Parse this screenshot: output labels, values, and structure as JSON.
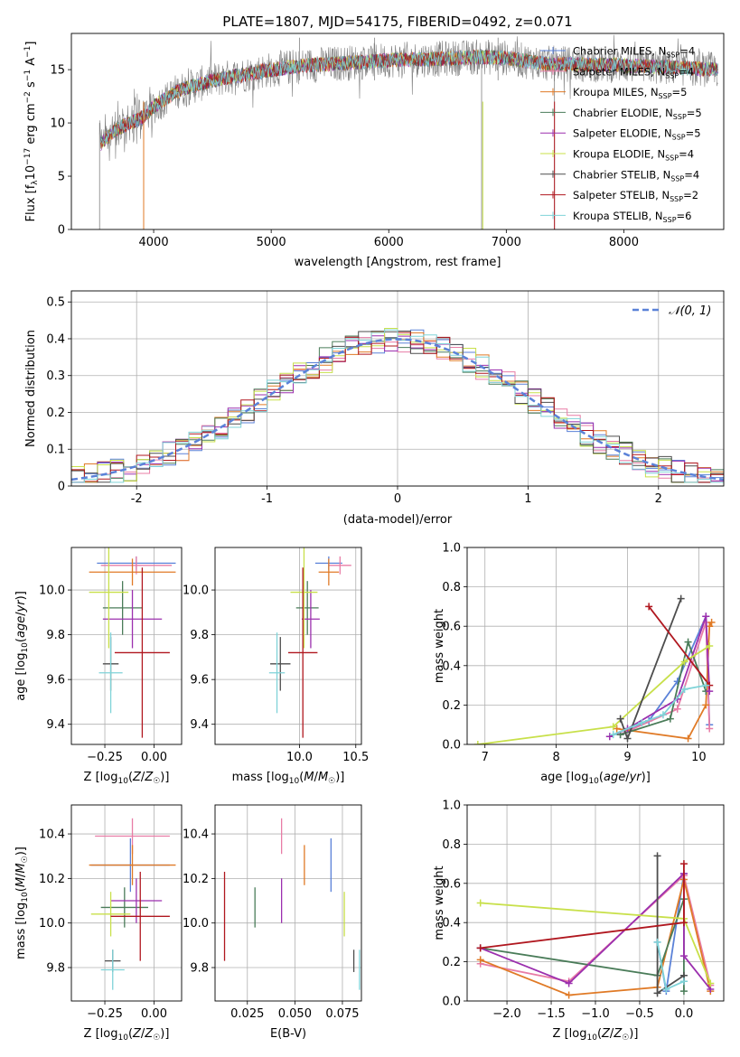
{
  "title": "PLATE=1807, MJD=54175, FIBERID=0492, z=0.071",
  "series_styles": [
    {
      "name": "Chabrier MILES",
      "nssp": "4",
      "color": "#5b82d8"
    },
    {
      "name": "Salpeter MILES",
      "nssp": "4",
      "color": "#e87ca6"
    },
    {
      "name": "Kroupa MILES",
      "nssp": "5",
      "color": "#e07a26"
    },
    {
      "name": "Chabrier ELODIE",
      "nssp": "5",
      "color": "#4a7c59"
    },
    {
      "name": "Salpeter ELODIE",
      "nssp": "5",
      "color": "#9b2fae"
    },
    {
      "name": "Kroupa ELODIE",
      "nssp": "4",
      "color": "#c8e04a"
    },
    {
      "name": "Chabrier STELIB",
      "nssp": "4",
      "color": "#4d4d4d"
    },
    {
      "name": "Salpeter STELIB",
      "nssp": "2",
      "color": "#b0171f"
    },
    {
      "name": "Kroupa STELIB",
      "nssp": "6",
      "color": "#7fd3d8"
    }
  ],
  "chart_data": [
    {
      "id": "spectrum",
      "type": "line",
      "xlabel": "wavelength [Angstrom, rest frame]",
      "ylabel": "Flux [f_λ 10^-17 erg cm^-2 s^-1 A^-1]",
      "xlim": [
        3300,
        8850
      ],
      "ylim": [
        0,
        18.4
      ],
      "xticks": [
        4000,
        5000,
        6000,
        7000,
        8000
      ],
      "yticks": [
        0,
        5,
        10,
        15
      ],
      "data_color": "#808080",
      "continuum": [
        [
          3540,
          8.0
        ],
        [
          3700,
          9.5
        ],
        [
          3900,
          10.5
        ],
        [
          4000,
          11.5
        ],
        [
          4200,
          13.0
        ],
        [
          4500,
          14.0
        ],
        [
          4800,
          14.6
        ],
        [
          5000,
          15.0
        ],
        [
          5300,
          15.4
        ],
        [
          5600,
          15.6
        ],
        [
          6000,
          15.9
        ],
        [
          6400,
          16.0
        ],
        [
          6800,
          16.2
        ],
        [
          7000,
          16.1
        ],
        [
          7300,
          15.6
        ],
        [
          7600,
          15.5
        ],
        [
          8000,
          15.4
        ],
        [
          8400,
          15.2
        ],
        [
          8800,
          15.0
        ]
      ],
      "legend_placement": "upper right",
      "grid": false
    },
    {
      "id": "residual_hist",
      "type": "histogram",
      "xlabel": "(data-model)/error",
      "ylabel": "Normed distribution",
      "xlim": [
        -2.5,
        2.5
      ],
      "ylim": [
        0,
        0.53
      ],
      "xticks": [
        -2,
        -1,
        0,
        1,
        2
      ],
      "yticks": [
        0.0,
        0.1,
        0.2,
        0.3,
        0.4,
        0.5
      ],
      "bin_width": 0.1,
      "reference_curve": {
        "name": "N(0,1)",
        "style": "dashed",
        "color": "#5b82d8"
      },
      "legend_placement": "upper right",
      "grid": true
    },
    {
      "id": "age_vs_Z",
      "type": "errorbar",
      "xlabel": "Z [log10(Z/Z☉)]",
      "ylabel": "age [log10(age/yr)]",
      "xlim": [
        -0.42,
        0.14
      ],
      "ylim": [
        9.31,
        10.19
      ],
      "xticks": [
        -0.25,
        0.0
      ],
      "xticklabels": [
        "−0.25",
        "0.00"
      ],
      "yticks": [
        9.4,
        9.6,
        9.8,
        10.0
      ],
      "yticklabels": [
        "9.4",
        "9.6",
        "9.8",
        "10.0"
      ],
      "points": [
        {
          "series": 0,
          "x": -0.09,
          "y": 10.12,
          "xe": 0.2,
          "ye": 0.03
        },
        {
          "series": 1,
          "x": -0.09,
          "y": 10.11,
          "xe": 0.18,
          "ye": 0.04
        },
        {
          "series": 2,
          "x": -0.11,
          "y": 10.08,
          "xe": 0.22,
          "ye": 0.06
        },
        {
          "series": 3,
          "x": -0.16,
          "y": 9.92,
          "xe": 0.1,
          "ye": 0.12
        },
        {
          "series": 4,
          "x": -0.11,
          "y": 9.87,
          "xe": 0.15,
          "ye": 0.13
        },
        {
          "series": 5,
          "x": -0.23,
          "y": 9.99,
          "xe": 0.1,
          "ye": 0.25
        },
        {
          "series": 6,
          "x": -0.22,
          "y": 9.67,
          "xe": 0.04,
          "ye": 0.12
        },
        {
          "series": 7,
          "x": -0.06,
          "y": 9.72,
          "xe": 0.14,
          "ye": 0.38
        },
        {
          "series": 8,
          "x": -0.22,
          "y": 9.63,
          "xe": 0.06,
          "ye": 0.18
        }
      ],
      "grid": true
    },
    {
      "id": "age_vs_mass",
      "type": "errorbar",
      "xlabel": "mass [log10(M/M☉)]",
      "ylabel": "",
      "xlim": [
        9.25,
        10.55
      ],
      "ylim": [
        9.31,
        10.19
      ],
      "xticks": [
        10.0,
        10.5
      ],
      "xticklabels": [
        "10.0",
        "10.5"
      ],
      "yticks": [
        9.4,
        9.6,
        9.8,
        10.0
      ],
      "yticklabels": [
        "9.4",
        "9.6",
        "9.8",
        "10.0"
      ],
      "points": [
        {
          "series": 0,
          "x": 10.26,
          "y": 10.12,
          "xe": 0.12,
          "ye": 0.03
        },
        {
          "series": 1,
          "x": 10.36,
          "y": 10.11,
          "xe": 0.1,
          "ye": 0.04
        },
        {
          "series": 2,
          "x": 10.26,
          "y": 10.08,
          "xe": 0.09,
          "ye": 0.06
        },
        {
          "series": 3,
          "x": 10.07,
          "y": 9.92,
          "xe": 0.1,
          "ye": 0.12
        },
        {
          "series": 4,
          "x": 10.1,
          "y": 9.87,
          "xe": 0.08,
          "ye": 0.13
        },
        {
          "series": 5,
          "x": 10.04,
          "y": 9.99,
          "xe": 0.12,
          "ye": 0.25
        },
        {
          "series": 6,
          "x": 9.83,
          "y": 9.67,
          "xe": 0.09,
          "ye": 0.12
        },
        {
          "series": 7,
          "x": 10.03,
          "y": 9.72,
          "xe": 0.13,
          "ye": 0.38
        },
        {
          "series": 8,
          "x": 9.8,
          "y": 9.63,
          "xe": 0.07,
          "ye": 0.18
        }
      ],
      "grid": true
    },
    {
      "id": "weight_vs_age",
      "type": "line",
      "xlabel": "age [log10(age/yr)]",
      "ylabel": "mass weight",
      "xlim": [
        6.75,
        10.35
      ],
      "ylim": [
        0,
        1.0
      ],
      "xticks": [
        7,
        8,
        9,
        10
      ],
      "xticklabels": [
        "7",
        "8",
        "9",
        "10"
      ],
      "yticks": [
        0.0,
        0.2,
        0.4,
        0.6,
        0.8,
        1.0
      ],
      "yticklabels": [
        "0.0",
        "0.2",
        "0.4",
        "0.6",
        "0.8",
        "1.0"
      ],
      "series": [
        {
          "series": 0,
          "x": [
            8.9,
            9.3,
            9.7,
            10.1,
            10.15
          ],
          "y": [
            0.05,
            0.12,
            0.32,
            0.65,
            0.1
          ]
        },
        {
          "series": 1,
          "x": [
            8.9,
            9.7,
            10.1,
            10.15
          ],
          "y": [
            0.05,
            0.18,
            0.62,
            0.08
          ]
        },
        {
          "series": 2,
          "x": [
            8.85,
            9.85,
            10.1,
            10.15,
            10.18
          ],
          "y": [
            0.08,
            0.03,
            0.2,
            0.6,
            0.62
          ]
        },
        {
          "series": 3,
          "x": [
            8.9,
            9.6,
            9.85,
            10.1
          ],
          "y": [
            0.05,
            0.13,
            0.52,
            0.27
          ]
        },
        {
          "series": 4,
          "x": [
            8.75,
            9.0,
            9.7,
            10.1,
            10.15
          ],
          "y": [
            0.04,
            0.08,
            0.23,
            0.65,
            0.27
          ]
        },
        {
          "series": 5,
          "x": [
            6.9,
            8.8,
            9.8,
            10.15
          ],
          "y": [
            0.0,
            0.09,
            0.42,
            0.5
          ]
        },
        {
          "series": 6,
          "x": [
            8.9,
            9.0,
            9.75
          ],
          "y": [
            0.13,
            0.03,
            0.74
          ]
        },
        {
          "series": 7,
          "x": [
            9.3,
            10.15
          ],
          "y": [
            0.7,
            0.3
          ]
        },
        {
          "series": 8,
          "x": [
            8.8,
            9.2,
            9.5,
            9.8,
            10.1
          ],
          "y": [
            0.05,
            0.11,
            0.15,
            0.28,
            0.3
          ]
        }
      ],
      "grid": true
    },
    {
      "id": "mass_vs_Z",
      "type": "errorbar",
      "xlabel": "Z [log10(Z/Z☉)]",
      "ylabel": "mass [log10(M/M☉)]",
      "xlim": [
        -0.42,
        0.14
      ],
      "ylim": [
        9.65,
        10.53
      ],
      "xticks": [
        -0.25,
        0.0
      ],
      "xticklabels": [
        "−0.25",
        "0.00"
      ],
      "yticks": [
        9.8,
        10.0,
        10.2,
        10.4
      ],
      "yticklabels": [
        "9.8",
        "10.0",
        "10.2",
        "10.4"
      ],
      "points": [
        {
          "series": 0,
          "x": -0.12,
          "y": 10.26,
          "xe": 0.2,
          "ye": 0.12
        },
        {
          "series": 1,
          "x": -0.11,
          "y": 10.39,
          "xe": 0.19,
          "ye": 0.08
        },
        {
          "series": 2,
          "x": -0.11,
          "y": 10.26,
          "xe": 0.22,
          "ye": 0.09
        },
        {
          "series": 3,
          "x": -0.15,
          "y": 10.07,
          "xe": 0.12,
          "ye": 0.09
        },
        {
          "series": 4,
          "x": -0.09,
          "y": 10.1,
          "xe": 0.13,
          "ye": 0.1
        },
        {
          "series": 5,
          "x": -0.22,
          "y": 10.04,
          "xe": 0.1,
          "ye": 0.1
        },
        {
          "series": 6,
          "x": -0.21,
          "y": 9.83,
          "xe": 0.04,
          "ye": 0.05
        },
        {
          "series": 7,
          "x": -0.07,
          "y": 10.03,
          "xe": 0.15,
          "ye": 0.2
        },
        {
          "series": 8,
          "x": -0.21,
          "y": 9.79,
          "xe": 0.06,
          "ye": 0.09
        }
      ],
      "grid": true
    },
    {
      "id": "mass_vs_EBV",
      "type": "errorbar",
      "xlabel": "E(B-V)",
      "ylabel": "",
      "xlim": [
        0.008,
        0.085
      ],
      "ylim": [
        9.65,
        10.53
      ],
      "xticks": [
        0.025,
        0.05,
        0.075
      ],
      "xticklabels": [
        "0.025",
        "0.050",
        "0.075"
      ],
      "yticks": [
        9.8,
        10.0,
        10.2,
        10.4
      ],
      "yticklabels": [
        "9.8",
        "10.0",
        "10.2",
        "10.4"
      ],
      "points": [
        {
          "series": 0,
          "x": 0.069,
          "y": 10.26,
          "xe": 0,
          "ye": 0.12
        },
        {
          "series": 1,
          "x": 0.043,
          "y": 10.39,
          "xe": 0,
          "ye": 0.08
        },
        {
          "series": 2,
          "x": 0.055,
          "y": 10.26,
          "xe": 0,
          "ye": 0.09
        },
        {
          "series": 3,
          "x": 0.029,
          "y": 10.07,
          "xe": 0,
          "ye": 0.09
        },
        {
          "series": 4,
          "x": 0.043,
          "y": 10.1,
          "xe": 0,
          "ye": 0.1
        },
        {
          "series": 5,
          "x": 0.076,
          "y": 10.04,
          "xe": 0,
          "ye": 0.1
        },
        {
          "series": 6,
          "x": 0.081,
          "y": 9.83,
          "xe": 0,
          "ye": 0.05
        },
        {
          "series": 7,
          "x": 0.013,
          "y": 10.03,
          "xe": 0,
          "ye": 0.2
        },
        {
          "series": 8,
          "x": 0.084,
          "y": 9.79,
          "xe": 0,
          "ye": 0.09
        }
      ],
      "grid": true
    },
    {
      "id": "weight_vs_Z",
      "type": "line",
      "xlabel": "Z [log10(Z/Z☉)]",
      "ylabel": "mass weight",
      "xlim": [
        -2.45,
        0.45
      ],
      "ylim": [
        0,
        1.0
      ],
      "xticks": [
        -2.0,
        -1.5,
        -1.0,
        -0.5,
        0.0
      ],
      "xticklabels": [
        "−2.0",
        "−1.5",
        "−1.0",
        "−0.5",
        "0.0"
      ],
      "yticks": [
        0.0,
        0.2,
        0.4,
        0.6,
        0.8,
        1.0
      ],
      "yticklabels": [
        "0.0",
        "0.2",
        "0.4",
        "0.6",
        "0.8",
        "1.0"
      ],
      "series": [
        {
          "series": 0,
          "x": [
            -0.3,
            -0.2,
            0.0
          ],
          "y": [
            0.3,
            0.05,
            0.65
          ]
        },
        {
          "series": 1,
          "x": [
            -2.3,
            -1.3,
            0.0,
            0.3
          ],
          "y": [
            0.19,
            0.1,
            0.64,
            0.08
          ]
        },
        {
          "series": 2,
          "x": [
            -2.3,
            -1.3,
            -0.3,
            0.0,
            0.3
          ],
          "y": [
            0.21,
            0.03,
            0.07,
            0.62,
            0.05
          ]
        },
        {
          "series": 3,
          "x": [
            -2.3,
            -0.3,
            0.0,
            0.0
          ],
          "y": [
            0.27,
            0.13,
            0.52,
            0.05
          ]
        },
        {
          "series": 4,
          "x": [
            -2.3,
            -1.3,
            0.0,
            0.0,
            0.3
          ],
          "y": [
            0.27,
            0.09,
            0.65,
            0.23,
            0.06
          ]
        },
        {
          "series": 5,
          "x": [
            -2.3,
            0.0,
            0.3
          ],
          "y": [
            0.5,
            0.42,
            0.09
          ]
        },
        {
          "series": 6,
          "x": [
            -0.3,
            -0.3,
            0.0,
            0.0
          ],
          "y": [
            0.74,
            0.04,
            0.13,
            0.1
          ]
        },
        {
          "series": 7,
          "x": [
            -2.3,
            0.0,
            0.0
          ],
          "y": [
            0.27,
            0.4,
            0.7
          ]
        },
        {
          "series": 8,
          "x": [
            -0.3,
            -0.2,
            0.0
          ],
          "y": [
            0.3,
            0.06,
            0.1
          ]
        }
      ],
      "grid": true
    }
  ]
}
